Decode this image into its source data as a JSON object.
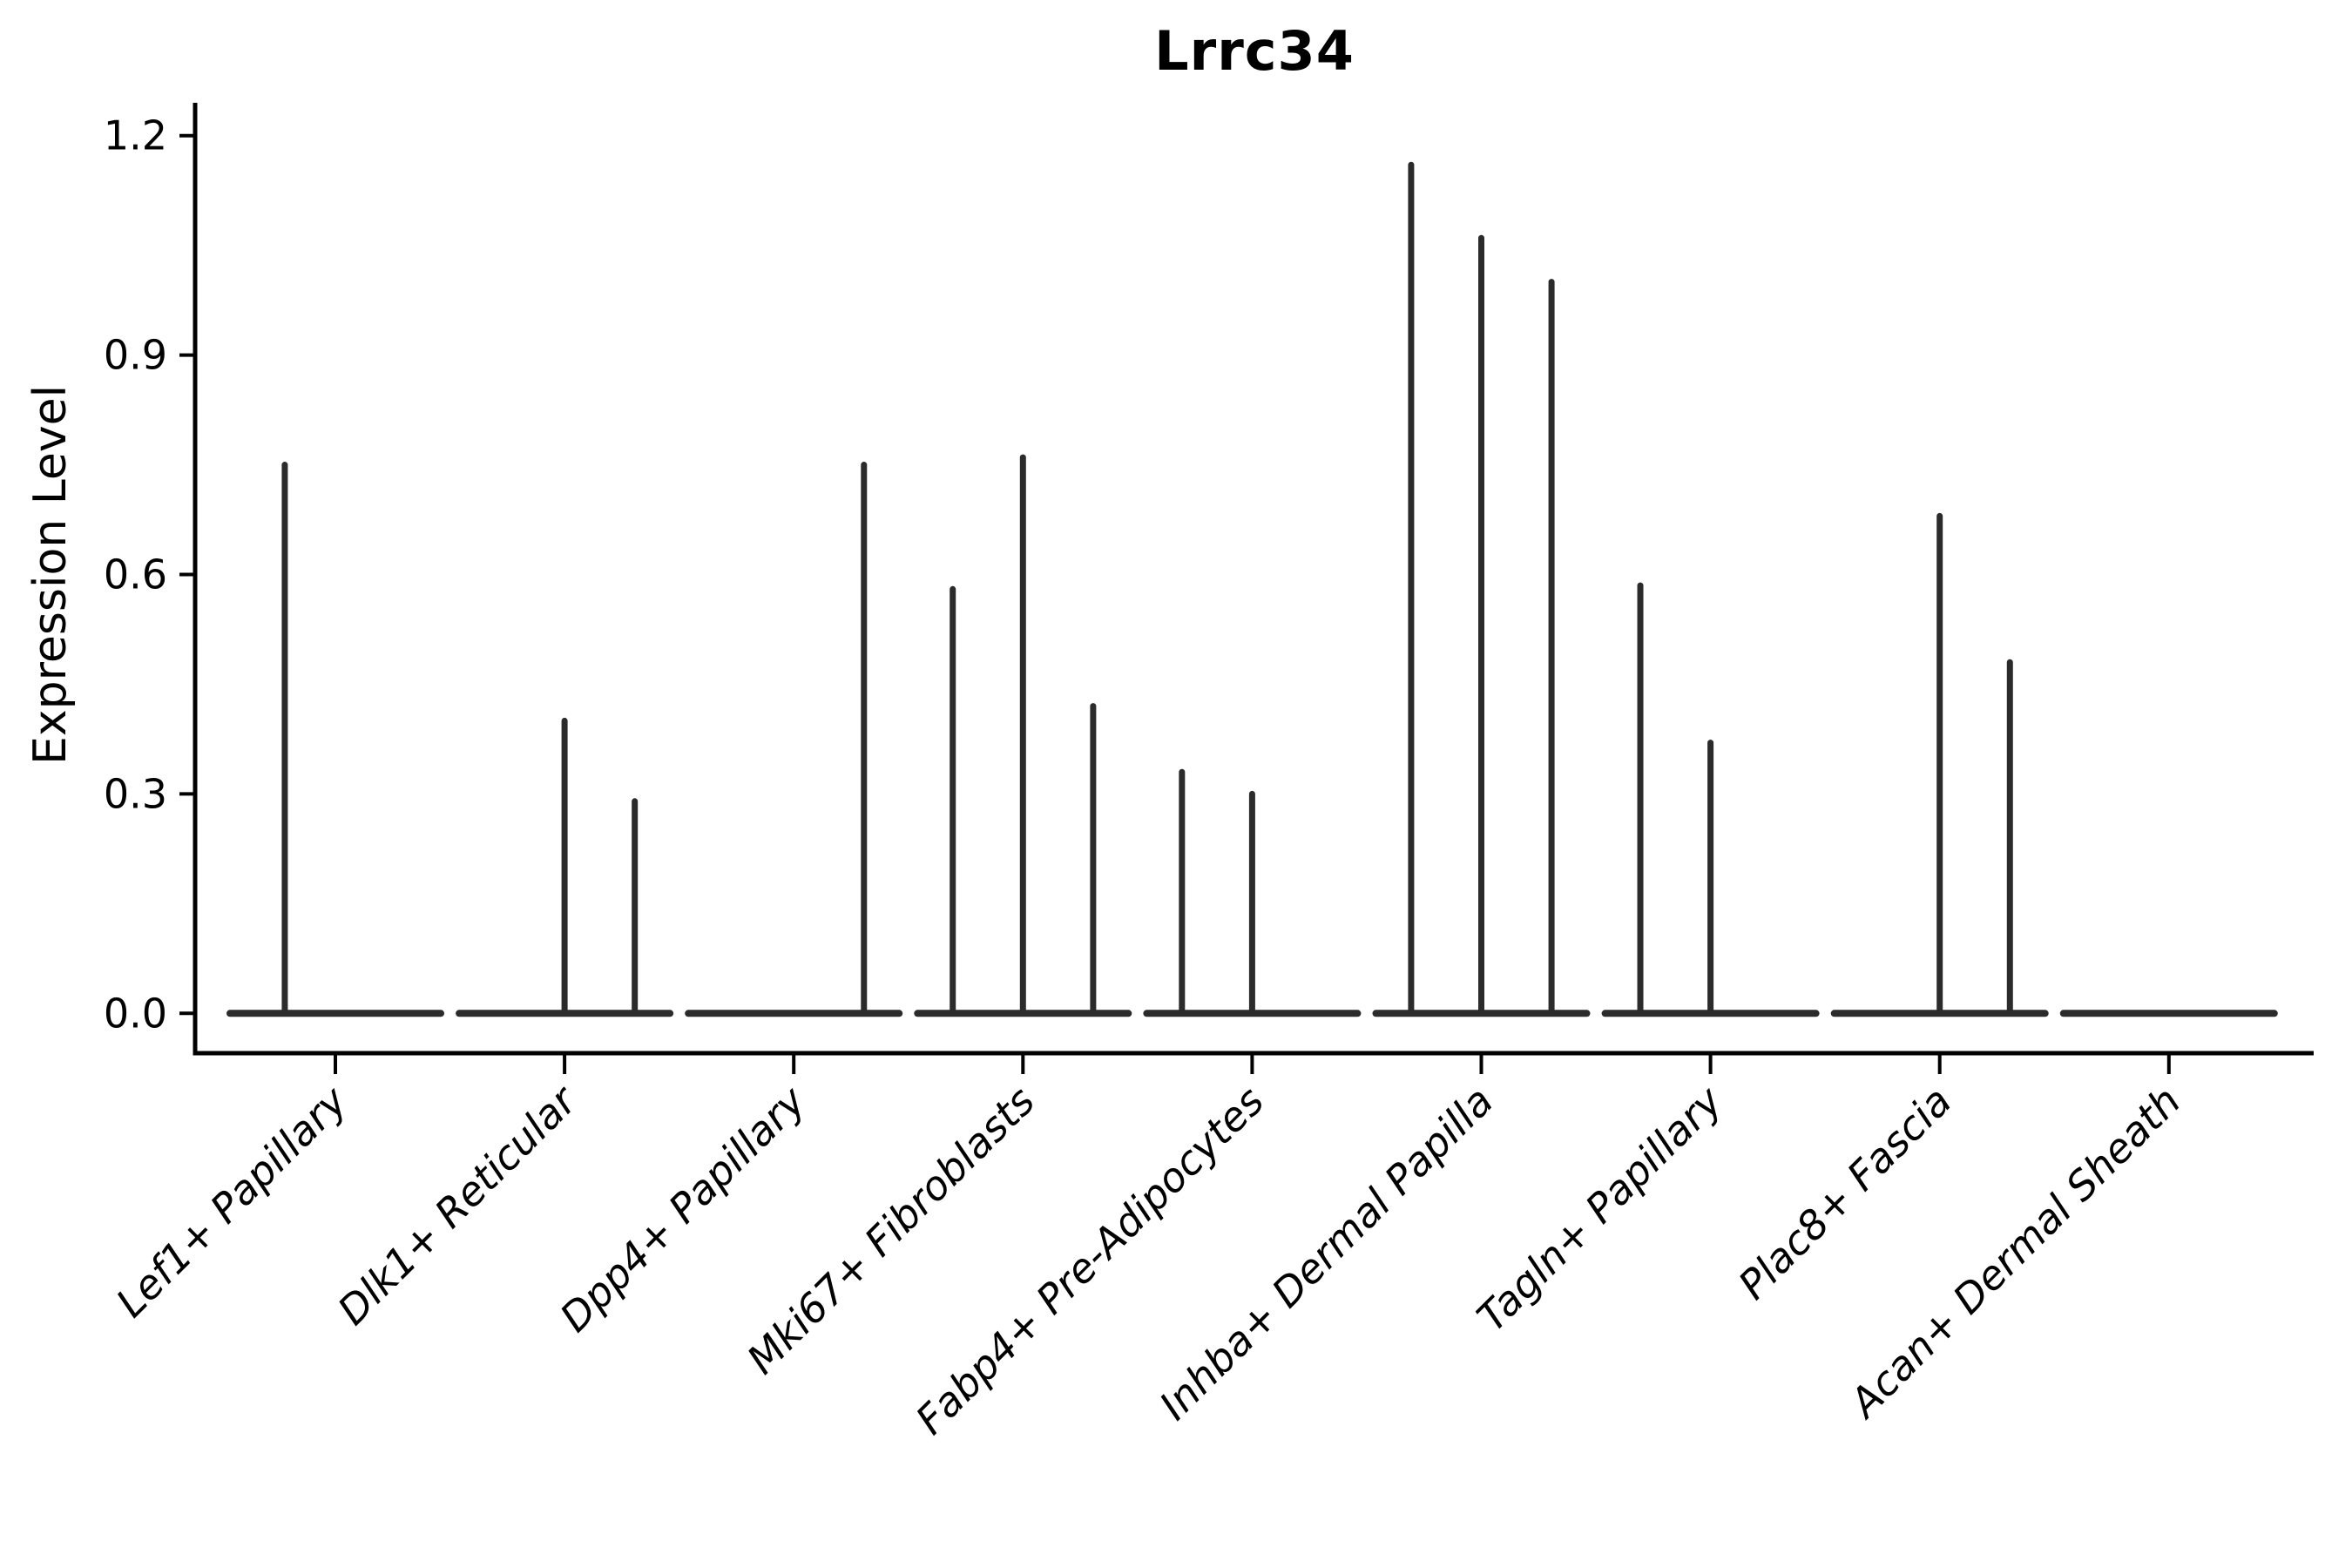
{
  "title": "Lrrc34",
  "y_axis": {
    "label": "Expression Level",
    "tick_labels": [
      "0.0",
      "0.3",
      "0.6",
      "0.9",
      "1.2"
    ],
    "tick_values": [
      0.0,
      0.3,
      0.6,
      0.9,
      1.2
    ]
  },
  "x_axis": {
    "categories": [
      "Lef1+ Papillary",
      "Dlk1+ Reticular",
      "Dpp4+ Papillary",
      "Mki67+ Fibroblasts",
      "Fabp4+ Pre-Adipocytes",
      "Inhba+ Dermal Papilla",
      "Tagln+ Papillary",
      "Plac8+ Fascia",
      "Acan+ Dermal Sheath"
    ]
  },
  "chart_data": {
    "type": "violin",
    "title": "Lrrc34",
    "xlabel": "",
    "ylabel": "Expression Level",
    "ylim": [
      0,
      1.2
    ],
    "yticks": [
      0.0,
      0.3,
      0.6,
      0.9,
      1.2
    ],
    "ytick_labels": [
      "0.0",
      "0.3",
      "0.6",
      "0.9",
      "1.2"
    ],
    "grid": false,
    "legend": "none",
    "description": "Flat violin plots along the zero baseline for each cell type; narrow density spikes rise at sub-violin positions (fraction across each group) to the maximum expression value.",
    "categories": [
      "Lef1+ Papillary",
      "Dlk1+ Reticular",
      "Dpp4+ Papillary",
      "Mki67+ Fibroblasts",
      "Fabp4+ Pre-Adipocytes",
      "Inhba+ Dermal Papilla",
      "Tagln+ Papillary",
      "Plac8+ Fascia",
      "Acan+ Dermal Sheath"
    ],
    "violins": [
      {
        "category": "Lef1+ Papillary",
        "baseline": 0.0,
        "spikes": [
          {
            "position": 0.26,
            "max": 0.75
          }
        ]
      },
      {
        "category": "Dlk1+ Reticular",
        "baseline": 0.0,
        "spikes": [
          {
            "position": 0.5,
            "max": 0.4
          },
          {
            "position": 0.833,
            "max": 0.29
          }
        ]
      },
      {
        "category": "Dpp4+ Papillary",
        "baseline": 0.0,
        "spikes": [
          {
            "position": 0.833,
            "max": 0.75
          }
        ]
      },
      {
        "category": "Mki67+ Fibroblasts",
        "baseline": 0.0,
        "spikes": [
          {
            "position": 0.167,
            "max": 0.58
          },
          {
            "position": 0.5,
            "max": 0.76
          },
          {
            "position": 0.833,
            "max": 0.42
          }
        ]
      },
      {
        "category": "Fabp4+ Pre-Adipocytes",
        "baseline": 0.0,
        "spikes": [
          {
            "position": 0.167,
            "max": 0.33
          },
          {
            "position": 0.5,
            "max": 0.3
          }
        ]
      },
      {
        "category": "Inhba+ Dermal Papilla",
        "baseline": 0.0,
        "spikes": [
          {
            "position": 0.167,
            "max": 1.16
          },
          {
            "position": 0.5,
            "max": 1.06
          },
          {
            "position": 0.833,
            "max": 1.0
          }
        ]
      },
      {
        "category": "Tagln+ Papillary",
        "baseline": 0.0,
        "spikes": [
          {
            "position": 0.167,
            "max": 0.585
          },
          {
            "position": 0.5,
            "max": 0.37
          }
        ]
      },
      {
        "category": "Plac8+ Fascia",
        "baseline": 0.0,
        "spikes": [
          {
            "position": 0.5,
            "max": 0.68
          },
          {
            "position": 0.833,
            "max": 0.48
          }
        ]
      },
      {
        "category": "Acan+ Dermal Sheath",
        "baseline": 0.0,
        "spikes": []
      }
    ],
    "colors": {
      "violin": "#2b2b2b",
      "axis": "#000000",
      "text": "#000000",
      "background": "#ffffff"
    }
  }
}
